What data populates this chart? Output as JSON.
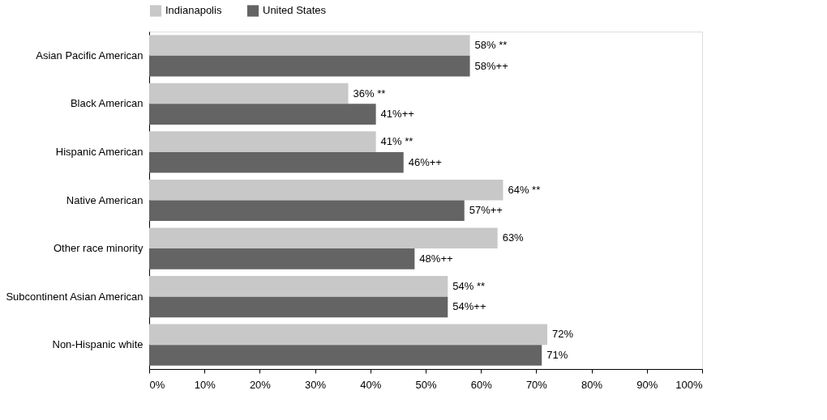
{
  "chart_data": {
    "type": "bar",
    "orientation": "horizontal",
    "categories": [
      "Asian Pacific American",
      "Black American",
      "Hispanic American",
      "Native American",
      "Other race minority",
      "Subcontinent Asian American",
      "Non-Hispanic white"
    ],
    "series": [
      {
        "name": "Indianapolis",
        "color": "#c8c8c8",
        "values": [
          58,
          36,
          41,
          64,
          63,
          54,
          72
        ],
        "value_labels": [
          "58% **",
          "36% **",
          "41% **",
          "64% **",
          "63%",
          "54% **",
          "72%"
        ]
      },
      {
        "name": "United States",
        "color": "#646464",
        "values": [
          58,
          41,
          46,
          57,
          48,
          54,
          71
        ],
        "value_labels": [
          "58%++",
          "41%++",
          "46%++",
          "57%++",
          "48%++",
          "54%++",
          "71%"
        ]
      }
    ],
    "xlim": [
      0,
      100
    ],
    "xticks": [
      {
        "value": 0,
        "label": "0%"
      },
      {
        "value": 10,
        "label": "10%"
      },
      {
        "value": 20,
        "label": "20%"
      },
      {
        "value": 30,
        "label": "30%"
      },
      {
        "value": 40,
        "label": "40%"
      },
      {
        "value": 50,
        "label": "50%"
      },
      {
        "value": 60,
        "label": "60%"
      },
      {
        "value": 70,
        "label": "70%"
      },
      {
        "value": 80,
        "label": "80%"
      },
      {
        "value": 90,
        "label": "90%"
      },
      {
        "value": 100,
        "label": "100%"
      }
    ],
    "grid": false,
    "legend": "top"
  }
}
